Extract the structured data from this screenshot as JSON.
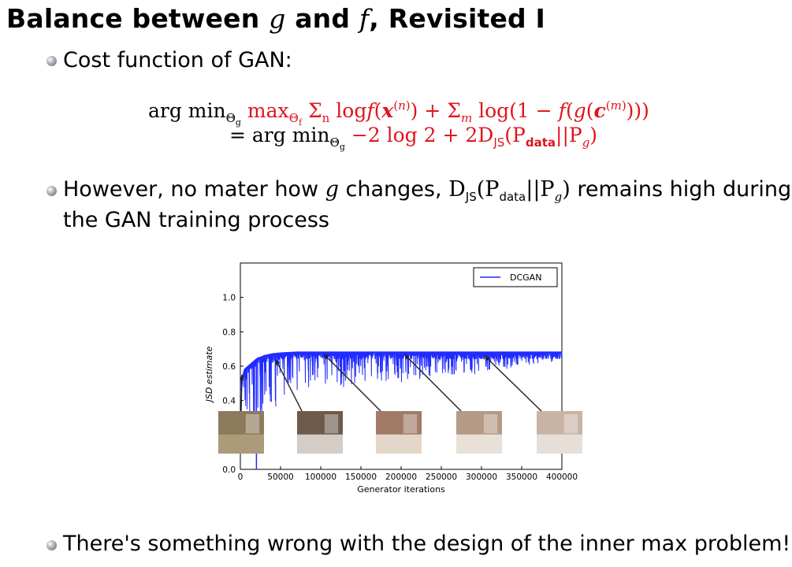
{
  "slide": {
    "title_prefix": "Balance between",
    "title_g": "g",
    "title_and": "and",
    "title_f": "f",
    "title_suffix": ", Revisited I"
  },
  "bullets": {
    "b1": "Cost function of GAN:",
    "b2_part1": "However, no mater how",
    "b2_g": "g",
    "b2_part2": "changes,",
    "b2_math": "DJS(Pdata||Pg)",
    "b2_part3": "remains high during",
    "b2_line2": "the GAN training process",
    "b3": "There's something wrong with the design of the inner max problem!"
  },
  "formula": {
    "line1_black": "arg minΘg",
    "line1_red": "maxΘf Σn log f(x(n)) + Σm log(1 − f(g(c(m))))",
    "line2_black": "= arg minΘg",
    "line2_red": "−2 log 2 + 2DJS(Pdata||Pg)"
  },
  "colors": {
    "accent_red": "#e0141c",
    "series_blue": "#1f2bff"
  },
  "chart_data": {
    "type": "line",
    "legend": [
      "DCGAN"
    ],
    "legend_position": "top-right",
    "xlabel": "Generator iterations",
    "ylabel": "JSD estimate",
    "xlim": [
      0,
      400000
    ],
    "ylim": [
      0.0,
      1.2
    ],
    "xticks": [
      "0",
      "50000",
      "100000",
      "150000",
      "200000",
      "250000",
      "300000",
      "350000",
      "400000"
    ],
    "yticks": [
      "0.0",
      "0.4",
      "0.6",
      "0.8",
      "1.0"
    ],
    "series": [
      {
        "name": "DCGAN",
        "x": [
          0,
          5000,
          10000,
          15000,
          20000,
          30000,
          40000,
          50000,
          70000,
          100000,
          150000,
          200000,
          250000,
          300000,
          350000,
          400000
        ],
        "y": [
          0.5,
          0.58,
          0.6,
          0.62,
          0.64,
          0.66,
          0.67,
          0.675,
          0.68,
          0.68,
          0.68,
          0.68,
          0.68,
          0.68,
          0.68,
          0.68
        ],
        "noise_min": [
          0.45,
          0.38,
          0.3,
          0.3,
          0.0,
          0.35,
          0.3,
          0.4,
          0.45,
          0.45,
          0.5,
          0.5,
          0.55,
          0.55,
          0.6,
          0.62
        ]
      }
    ],
    "annotations": [
      {
        "x": 0,
        "y": 0.55,
        "image": "noise sample"
      },
      {
        "x": 40000,
        "y": 0.64,
        "image": "bedroom sample"
      },
      {
        "x": 100000,
        "y": 0.67,
        "image": "bedroom sample"
      },
      {
        "x": 200000,
        "y": 0.67,
        "image": "bedroom sample"
      },
      {
        "x": 300000,
        "y": 0.66,
        "image": "bedroom sample"
      }
    ]
  }
}
